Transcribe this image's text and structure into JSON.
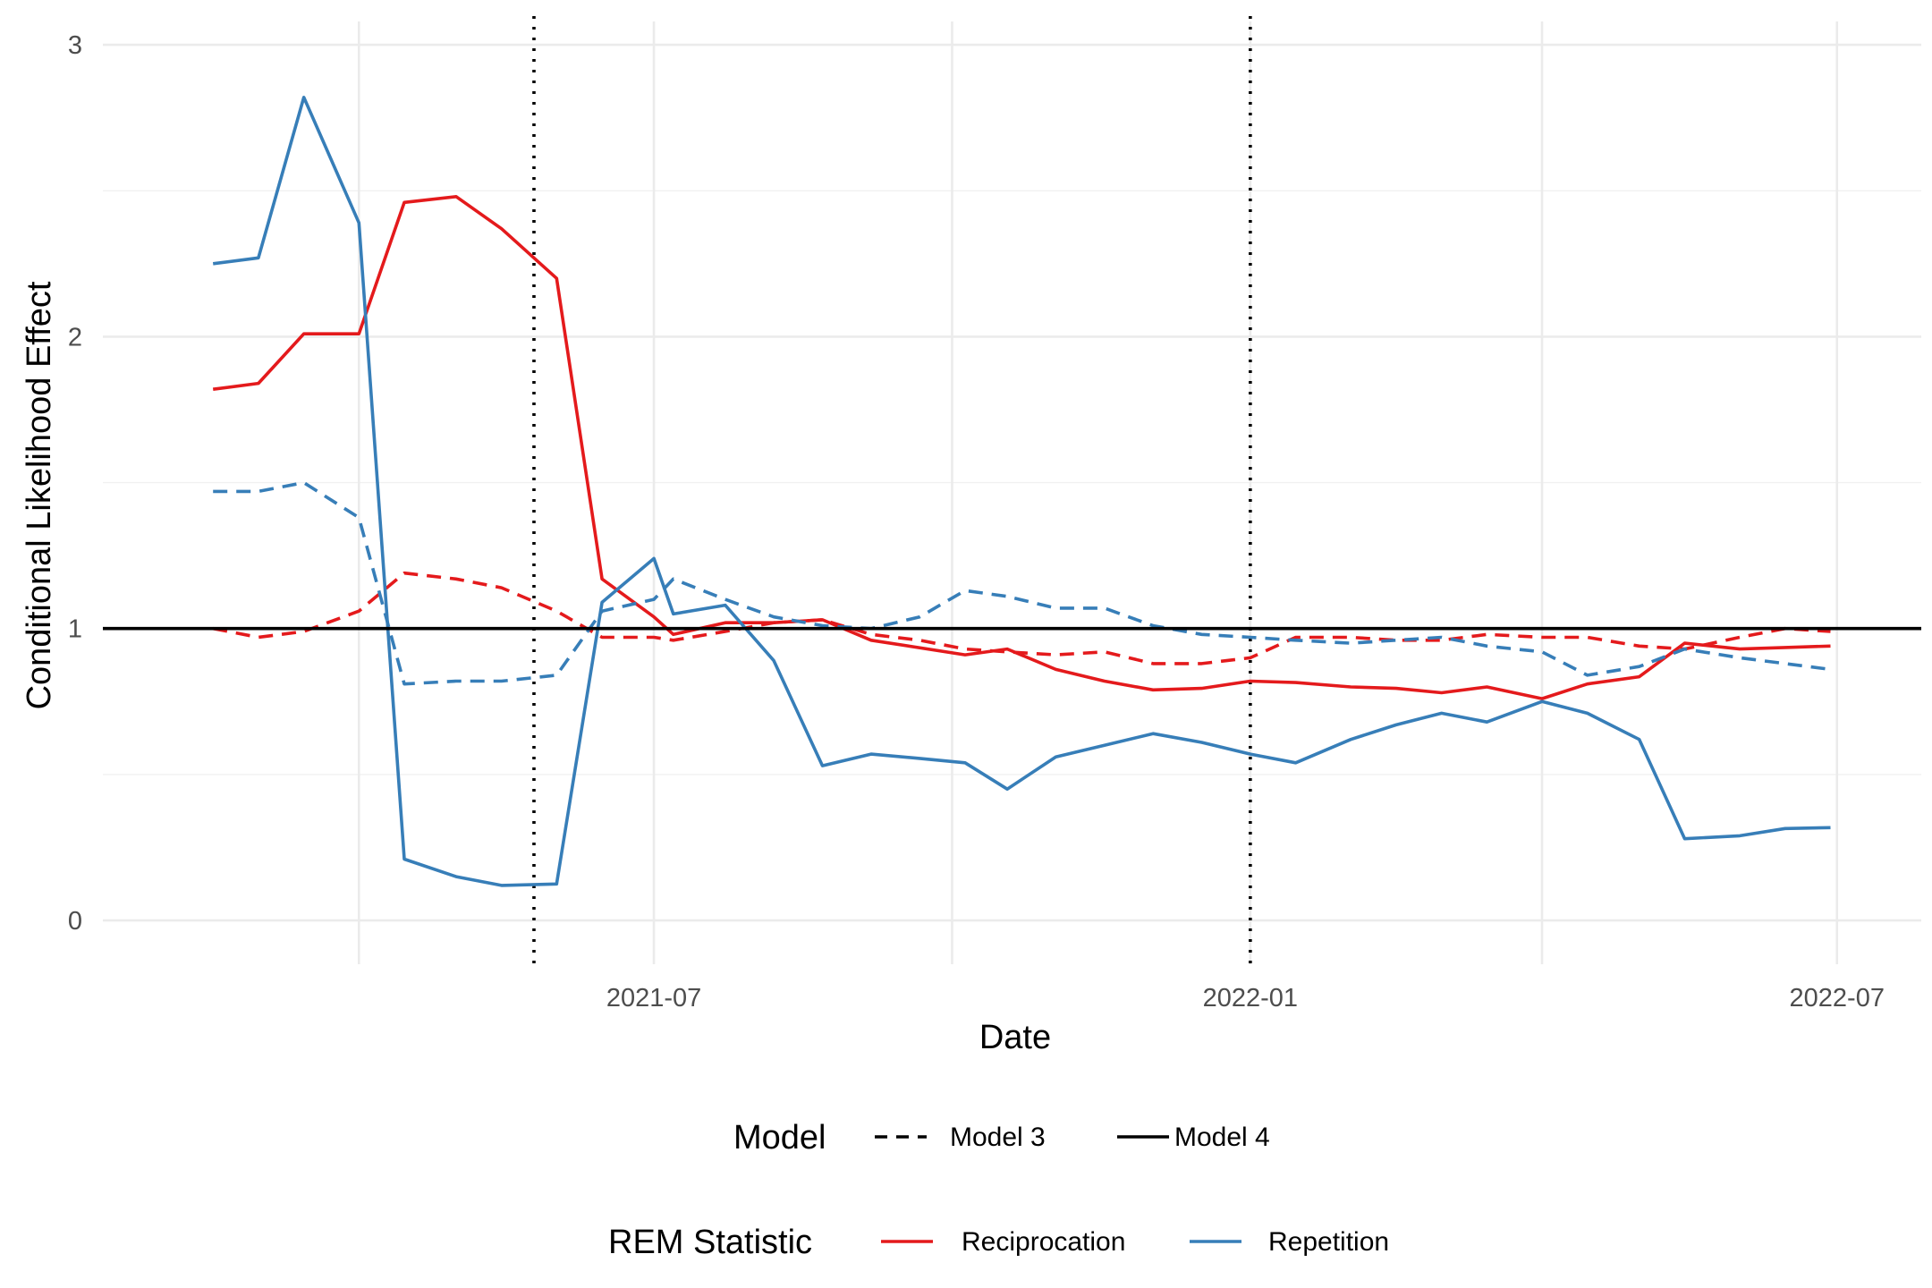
{
  "chart_data": {
    "type": "line",
    "title": "",
    "xlabel": "Date",
    "ylabel": "Conditional Likelihood Effect",
    "x_axis": {
      "type": "date",
      "range": [
        "2021-01-12",
        "2022-07-27"
      ],
      "ticks": [
        {
          "date": "2021-07-01",
          "label": "2021-07"
        },
        {
          "date": "2022-01-01",
          "label": "2022-01"
        },
        {
          "date": "2022-07-01",
          "label": "2022-07"
        }
      ],
      "minor_gridlines": [
        "2021-04-01",
        "2021-10-01",
        "2022-04-01"
      ]
    },
    "y_axis": {
      "range": [
        -0.15,
        3.08
      ],
      "ticks": [
        {
          "value": 0,
          "label": "0"
        },
        {
          "value": 1,
          "label": "1"
        },
        {
          "value": 2,
          "label": "2"
        },
        {
          "value": 3,
          "label": "3"
        }
      ],
      "minor_gridlines": [
        0.5,
        1.5,
        2.5
      ]
    },
    "grid": true,
    "reference_line": {
      "y": 1,
      "color": "#000000"
    },
    "vertical_lines": [
      {
        "date": "2021-05-25",
        "style": "dotted",
        "color": "#000000"
      },
      {
        "date": "2022-01-01",
        "style": "dotted",
        "color": "#000000"
      }
    ],
    "series": [
      {
        "statistic": "Reciprocation",
        "model": "Model 4",
        "color": "#e41a1c",
        "dash": "solid",
        "points": [
          [
            "2021-02-15",
            1.82
          ],
          [
            "2021-03-01",
            1.84
          ],
          [
            "2021-03-15",
            2.01
          ],
          [
            "2021-04-01",
            2.01
          ],
          [
            "2021-04-15",
            2.46
          ],
          [
            "2021-05-01",
            2.48
          ],
          [
            "2021-05-15",
            2.37
          ],
          [
            "2021-06-01",
            2.2
          ],
          [
            "2021-06-15",
            1.17
          ],
          [
            "2021-07-01",
            1.04
          ],
          [
            "2021-07-07",
            0.98
          ],
          [
            "2021-07-23",
            1.02
          ],
          [
            "2021-08-07",
            1.02
          ],
          [
            "2021-08-22",
            1.03
          ],
          [
            "2021-09-06",
            0.96
          ],
          [
            "2021-10-05",
            0.91
          ],
          [
            "2021-10-18",
            0.93
          ],
          [
            "2021-11-02",
            0.86
          ],
          [
            "2021-11-17",
            0.82
          ],
          [
            "2021-12-02",
            0.79
          ],
          [
            "2021-12-17",
            0.795
          ],
          [
            "2022-01-01",
            0.82
          ],
          [
            "2022-01-15",
            0.815
          ],
          [
            "2022-02-01",
            0.8
          ],
          [
            "2022-02-15",
            0.795
          ],
          [
            "2022-03-01",
            0.78
          ],
          [
            "2022-03-15",
            0.8
          ],
          [
            "2022-04-01",
            0.76
          ],
          [
            "2022-04-15",
            0.81
          ],
          [
            "2022-05-01",
            0.835
          ],
          [
            "2022-05-15",
            0.95
          ],
          [
            "2022-06-01",
            0.93
          ],
          [
            "2022-06-15",
            0.935
          ],
          [
            "2022-06-29",
            0.94
          ]
        ]
      },
      {
        "statistic": "Reciprocation",
        "model": "Model 3",
        "color": "#e41a1c",
        "dash": "dashed",
        "points": [
          [
            "2021-02-15",
            1.0
          ],
          [
            "2021-03-01",
            0.97
          ],
          [
            "2021-03-15",
            0.99
          ],
          [
            "2021-04-01",
            1.06
          ],
          [
            "2021-04-15",
            1.19
          ],
          [
            "2021-05-01",
            1.17
          ],
          [
            "2021-05-15",
            1.14
          ],
          [
            "2021-06-01",
            1.06
          ],
          [
            "2021-06-15",
            0.97
          ],
          [
            "2021-07-01",
            0.97
          ],
          [
            "2021-07-07",
            0.96
          ],
          [
            "2021-07-23",
            0.99
          ],
          [
            "2021-08-07",
            1.02
          ],
          [
            "2021-08-22",
            1.03
          ],
          [
            "2021-09-06",
            0.98
          ],
          [
            "2021-09-21",
            0.96
          ],
          [
            "2021-10-05",
            0.93
          ],
          [
            "2021-10-18",
            0.92
          ],
          [
            "2021-11-02",
            0.91
          ],
          [
            "2021-11-17",
            0.92
          ],
          [
            "2021-12-02",
            0.88
          ],
          [
            "2021-12-17",
            0.88
          ],
          [
            "2022-01-01",
            0.9
          ],
          [
            "2022-01-15",
            0.97
          ],
          [
            "2022-02-01",
            0.97
          ],
          [
            "2022-02-15",
            0.96
          ],
          [
            "2022-03-01",
            0.96
          ],
          [
            "2022-03-15",
            0.98
          ],
          [
            "2022-04-01",
            0.97
          ],
          [
            "2022-04-15",
            0.97
          ],
          [
            "2022-05-01",
            0.94
          ],
          [
            "2022-05-15",
            0.93
          ],
          [
            "2022-06-01",
            0.97
          ],
          [
            "2022-06-15",
            1.0
          ],
          [
            "2022-06-29",
            0.99
          ]
        ]
      },
      {
        "statistic": "Repetition",
        "model": "Model 4",
        "color": "#377eb8",
        "dash": "solid",
        "points": [
          [
            "2021-02-15",
            2.25
          ],
          [
            "2021-03-01",
            2.27
          ],
          [
            "2021-03-15",
            2.82
          ],
          [
            "2021-04-01",
            2.39
          ],
          [
            "2021-04-15",
            0.21
          ],
          [
            "2021-05-01",
            0.15
          ],
          [
            "2021-05-15",
            0.12
          ],
          [
            "2021-06-01",
            0.125
          ],
          [
            "2021-06-15",
            1.09
          ],
          [
            "2021-07-01",
            1.24
          ],
          [
            "2021-07-07",
            1.05
          ],
          [
            "2021-07-23",
            1.08
          ],
          [
            "2021-08-07",
            0.89
          ],
          [
            "2021-08-22",
            0.53
          ],
          [
            "2021-09-06",
            0.57
          ],
          [
            "2021-09-21",
            0.555
          ],
          [
            "2021-10-05",
            0.54
          ],
          [
            "2021-10-18",
            0.45
          ],
          [
            "2021-11-02",
            0.56
          ],
          [
            "2021-11-17",
            0.6
          ],
          [
            "2021-12-02",
            0.64
          ],
          [
            "2021-12-17",
            0.61
          ],
          [
            "2022-01-01",
            0.57
          ],
          [
            "2022-01-15",
            0.54
          ],
          [
            "2022-02-01",
            0.62
          ],
          [
            "2022-02-15",
            0.67
          ],
          [
            "2022-03-01",
            0.71
          ],
          [
            "2022-03-15",
            0.68
          ],
          [
            "2022-04-01",
            0.75
          ],
          [
            "2022-04-15",
            0.71
          ],
          [
            "2022-05-01",
            0.62
          ],
          [
            "2022-05-15",
            0.28
          ],
          [
            "2022-06-01",
            0.29
          ],
          [
            "2022-06-15",
            0.315
          ],
          [
            "2022-06-29",
            0.318
          ]
        ]
      },
      {
        "statistic": "Repetition",
        "model": "Model 3",
        "color": "#377eb8",
        "dash": "dashed",
        "points": [
          [
            "2021-02-15",
            1.47
          ],
          [
            "2021-03-01",
            1.47
          ],
          [
            "2021-03-15",
            1.5
          ],
          [
            "2021-04-01",
            1.38
          ],
          [
            "2021-04-15",
            0.81
          ],
          [
            "2021-05-01",
            0.82
          ],
          [
            "2021-05-15",
            0.82
          ],
          [
            "2021-06-01",
            0.84
          ],
          [
            "2021-06-15",
            1.06
          ],
          [
            "2021-07-01",
            1.1
          ],
          [
            "2021-07-07",
            1.17
          ],
          [
            "2021-07-23",
            1.1
          ],
          [
            "2021-08-07",
            1.04
          ],
          [
            "2021-08-22",
            1.01
          ],
          [
            "2021-09-06",
            1.0
          ],
          [
            "2021-09-21",
            1.04
          ],
          [
            "2021-10-05",
            1.13
          ],
          [
            "2021-10-18",
            1.11
          ],
          [
            "2021-11-02",
            1.07
          ],
          [
            "2021-11-17",
            1.07
          ],
          [
            "2021-12-02",
            1.01
          ],
          [
            "2021-12-17",
            0.98
          ],
          [
            "2022-01-01",
            0.97
          ],
          [
            "2022-01-15",
            0.96
          ],
          [
            "2022-02-01",
            0.95
          ],
          [
            "2022-02-15",
            0.96
          ],
          [
            "2022-03-01",
            0.97
          ],
          [
            "2022-03-15",
            0.94
          ],
          [
            "2022-04-01",
            0.92
          ],
          [
            "2022-04-15",
            0.84
          ],
          [
            "2022-05-01",
            0.87
          ],
          [
            "2022-05-15",
            0.93
          ],
          [
            "2022-06-01",
            0.9
          ],
          [
            "2022-06-15",
            0.88
          ],
          [
            "2022-06-29",
            0.86
          ]
        ]
      }
    ],
    "legends": [
      {
        "title": "Model",
        "placement": "bottom",
        "items": [
          {
            "label": "Model 3",
            "dash": "dashed",
            "color": "#000000"
          },
          {
            "label": "Model 4",
            "dash": "solid",
            "color": "#000000"
          }
        ]
      },
      {
        "title": "REM Statistic",
        "placement": "bottom",
        "items": [
          {
            "label": "Reciprocation",
            "dash": "solid",
            "color": "#e41a1c"
          },
          {
            "label": "Repetition",
            "dash": "solid",
            "color": "#377eb8"
          }
        ]
      }
    ]
  }
}
